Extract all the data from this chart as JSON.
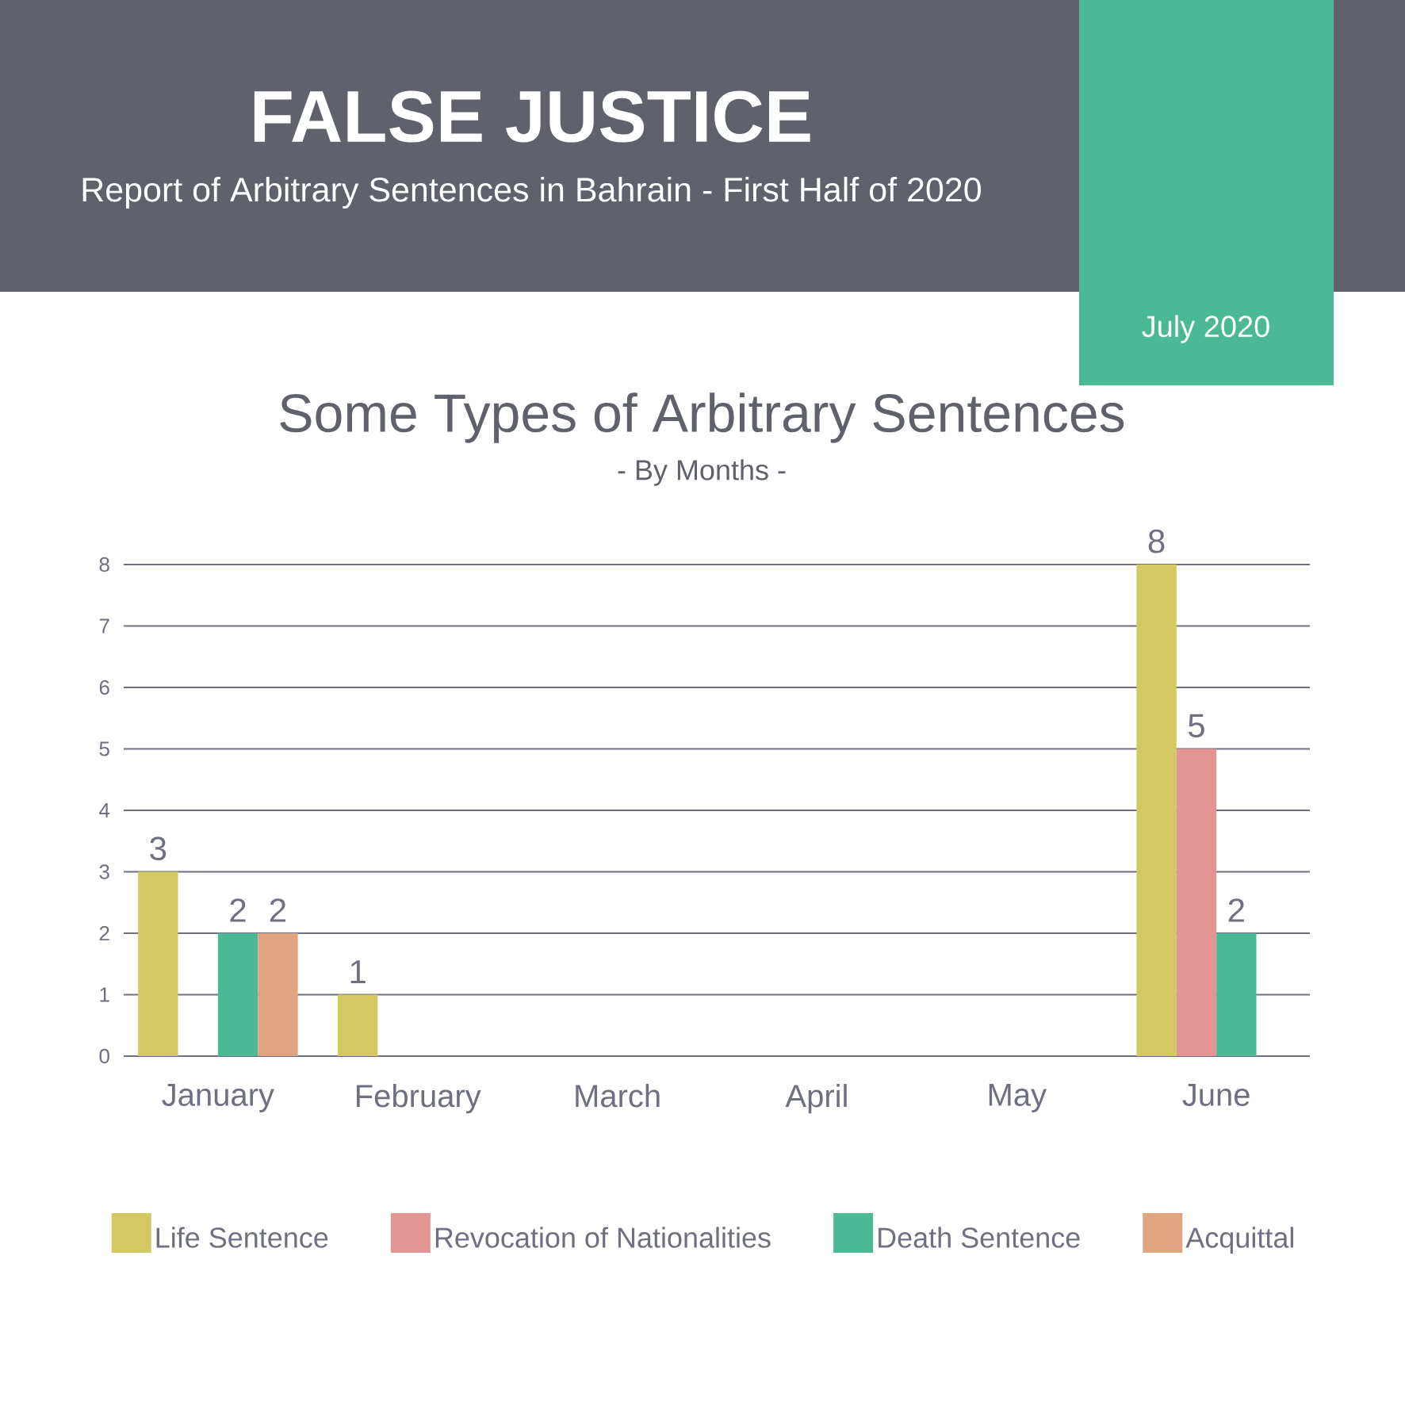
{
  "chart_data": {
    "type": "bar",
    "title": "Some Types of Arbitrary Sentences",
    "subtitle": "- By Months -",
    "annotations": [
      "FALSE JUSTICE",
      "Report of Arbitrary Sentences in Bahrain - First Half of 2020",
      "July 2020"
    ],
    "categories": [
      "January",
      "February",
      "March",
      "April",
      "May",
      "June"
    ],
    "series": [
      {
        "name": "Life Sentence",
        "color": "#d4c862",
        "values": [
          3,
          1,
          0,
          0,
          0,
          8
        ],
        "value_labels": [
          "3",
          "1",
          null,
          null,
          null,
          "8"
        ]
      },
      {
        "name": "Revocation of Nationalities",
        "color": "#e49593",
        "values": [
          0,
          0,
          0,
          0,
          0,
          5
        ],
        "value_labels": [
          null,
          null,
          null,
          null,
          null,
          "5"
        ]
      },
      {
        "name": "Death Sentence",
        "color": "#4bb896",
        "values": [
          2,
          0,
          0,
          0,
          0,
          2
        ],
        "value_labels": [
          "2",
          null,
          null,
          null,
          null,
          "2"
        ]
      },
      {
        "name": "Acquittal",
        "color": "#e0a47e",
        "values": [
          2,
          0,
          0,
          0,
          0,
          0
        ],
        "value_labels": [
          "2",
          null,
          null,
          null,
          null,
          null
        ]
      }
    ],
    "ylim": [
      0,
      8
    ],
    "yticks": [
      0,
      1,
      2,
      3,
      4,
      5,
      6,
      7,
      8
    ],
    "grid": "y",
    "legend": "bottom"
  }
}
